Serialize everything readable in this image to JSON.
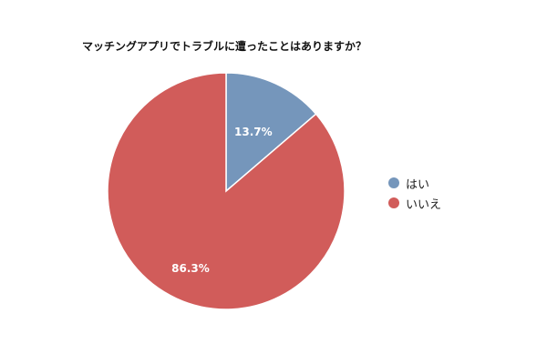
{
  "chart_data": {
    "type": "pie",
    "title": "マッチングアプリでトラブルに遭ったことはありますか？",
    "categories": [
      "はい",
      "いいえ"
    ],
    "values": [
      13.7,
      86.3
    ],
    "labels": [
      "13.7%",
      "86.3%"
    ],
    "colors": [
      "#7596bb",
      "#d15c5a"
    ],
    "legend_position": "right",
    "start_angle": "top (12 o'clock)",
    "direction": "clockwise"
  }
}
